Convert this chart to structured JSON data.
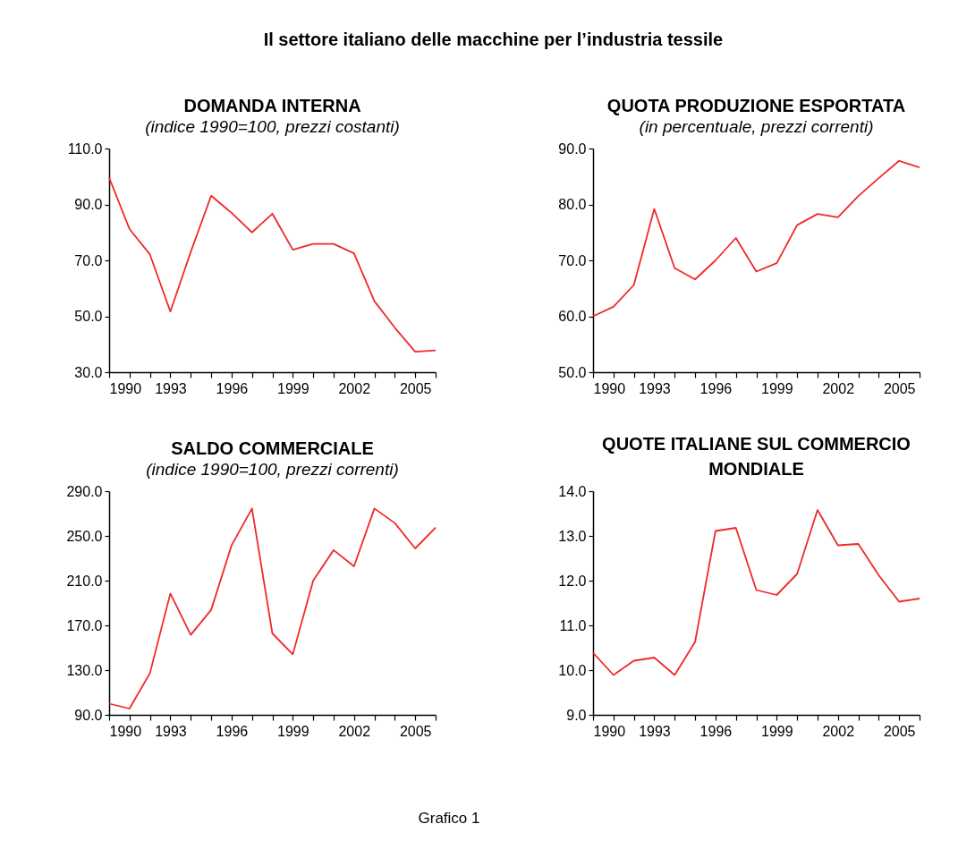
{
  "chart_data": [
    {
      "type": "line",
      "title": "DOMANDA INTERNA",
      "subtitle": "(indice 1990=100, prezzi costanti)",
      "annotations": [
        "Il settore italiano delle macchine per l’industria tessile",
        "Grafico 1"
      ],
      "color": "#f0282a",
      "x": [
        1990,
        1991,
        1992,
        1993,
        1994,
        1995,
        1996,
        1997,
        1998,
        1999,
        2000,
        2001,
        2002,
        2003,
        2004,
        2005,
        2006
      ],
      "values": [
        99.6,
        81.2,
        72.1,
        51.7,
        73,
        93.1,
        87.0,
        80.0,
        86.7,
        73.8,
        75.9,
        75.9,
        72.5,
        55.4,
        45.9,
        37.3,
        37.8
      ],
      "xlim": [
        1990,
        2006
      ],
      "xticks": [
        1990,
        {
          "value": 1991,
          "label": null
        },
        {
          "value": 1992,
          "label": null
        },
        1993,
        {
          "value": 1994,
          "label": null
        },
        {
          "value": 1995,
          "label": null
        },
        1996,
        {
          "value": 1997,
          "label": null
        },
        {
          "value": 1998,
          "label": null
        },
        1999,
        {
          "value": 2000,
          "label": null
        },
        {
          "value": 2001,
          "label": null
        },
        2002,
        {
          "value": 2003,
          "label": null
        },
        {
          "value": 2004,
          "label": null
        },
        2005,
        {
          "value": 2006,
          "label": null
        }
      ],
      "ylim": [
        30,
        110
      ],
      "yticks": [
        {
          "value": 30,
          "label": "30.0"
        },
        {
          "value": 50,
          "label": "50.0"
        },
        {
          "value": 70,
          "label": "70.0"
        },
        {
          "value": 90,
          "label": "90.0"
        },
        {
          "value": 110,
          "label": "110.0"
        }
      ],
      "grid": false,
      "marker": "none",
      "line_style": "solid"
    },
    {
      "type": "line",
      "title": "QUOTA PRODUZIONE ESPORTATA",
      "subtitle": "(in percentuale, prezzi correnti)",
      "color": "#f0282a",
      "x": [
        1990,
        1991,
        1992,
        1993,
        1994,
        1995,
        1996,
        1997,
        1998,
        1999,
        2000,
        2001,
        2002,
        2003,
        2004,
        2005,
        2006
      ],
      "values": [
        60.0,
        61.7,
        65.6,
        79.2,
        68.6,
        66.6,
        70.0,
        74.0,
        68.0,
        69.5,
        76.3,
        78.3,
        77.7,
        81.5,
        84.7,
        87.8,
        86.6
      ],
      "xlim": [
        1990,
        2006
      ],
      "xticks": [
        1990,
        {
          "value": 1991,
          "label": null
        },
        {
          "value": 1992,
          "label": null
        },
        1993,
        {
          "value": 1994,
          "label": null
        },
        {
          "value": 1995,
          "label": null
        },
        1996,
        {
          "value": 1997,
          "label": null
        },
        {
          "value": 1998,
          "label": null
        },
        1999,
        {
          "value": 2000,
          "label": null
        },
        {
          "value": 2001,
          "label": null
        },
        2002,
        {
          "value": 2003,
          "label": null
        },
        {
          "value": 2004,
          "label": null
        },
        2005,
        {
          "value": 2006,
          "label": null
        }
      ],
      "ylim": [
        50,
        90
      ],
      "yticks": [
        {
          "value": 50,
          "label": "50.0"
        },
        {
          "value": 60,
          "label": "60.0"
        },
        {
          "value": 70,
          "label": "70.0"
        },
        {
          "value": 80,
          "label": "80.0"
        },
        {
          "value": 90,
          "label": "90.0"
        }
      ],
      "grid": false,
      "marker": "none",
      "line_style": "solid"
    },
    {
      "type": "line",
      "title": "SALDO COMMERCIALE",
      "subtitle": "(indice 1990=100, prezzi correnti)",
      "color": "#f0282a",
      "x": [
        1990,
        1991,
        1992,
        1993,
        1994,
        1995,
        1996,
        1997,
        1998,
        1999,
        2000,
        2001,
        2002,
        2003,
        2004,
        2005,
        2006
      ],
      "values": [
        100,
        95.6,
        127.3,
        198.5,
        161.5,
        183.9,
        241.5,
        274.5,
        162.8,
        144.1,
        210,
        237.3,
        222.8,
        274.5,
        261.5,
        238.8,
        257.5
      ],
      "xlim": [
        1990,
        2006
      ],
      "xticks": [
        1990,
        {
          "value": 1991,
          "label": null
        },
        {
          "value": 1992,
          "label": null
        },
        1993,
        {
          "value": 1994,
          "label": null
        },
        {
          "value": 1995,
          "label": null
        },
        1996,
        {
          "value": 1997,
          "label": null
        },
        {
          "value": 1998,
          "label": null
        },
        1999,
        {
          "value": 2000,
          "label": null
        },
        {
          "value": 2001,
          "label": null
        },
        2002,
        {
          "value": 2003,
          "label": null
        },
        {
          "value": 2004,
          "label": null
        },
        2005,
        {
          "value": 2006,
          "label": null
        }
      ],
      "ylim": [
        90,
        290
      ],
      "yticks": [
        {
          "value": 90,
          "label": "90.0"
        },
        {
          "value": 130,
          "label": "130.0"
        },
        {
          "value": 170,
          "label": "170.0"
        },
        {
          "value": 210,
          "label": "210.0"
        },
        {
          "value": 250,
          "label": "250.0"
        },
        {
          "value": 290,
          "label": "290.0"
        }
      ],
      "grid": false,
      "marker": "none",
      "line_style": "solid"
    },
    {
      "type": "line",
      "title": "QUOTE ITALIANE SUL COMMERCIO MONDIALE",
      "color": "#f0282a",
      "x": [
        1990,
        1991,
        1992,
        1993,
        1994,
        1995,
        1996,
        1997,
        1998,
        1999,
        2000,
        2001,
        2002,
        2003,
        2004,
        2005,
        2006
      ],
      "values": [
        10.39,
        9.89,
        10.21,
        10.28,
        9.89,
        10.63,
        13.11,
        13.18,
        11.79,
        11.68,
        12.15,
        13.58,
        12.79,
        12.82,
        12.12,
        11.53,
        11.6
      ],
      "xlim": [
        1990,
        2006
      ],
      "xticks": [
        1990,
        {
          "value": 1991,
          "label": null
        },
        {
          "value": 1992,
          "label": null
        },
        1993,
        {
          "value": 1994,
          "label": null
        },
        {
          "value": 1995,
          "label": null
        },
        1996,
        {
          "value": 1997,
          "label": null
        },
        {
          "value": 1998,
          "label": null
        },
        1999,
        {
          "value": 2000,
          "label": null
        },
        {
          "value": 2001,
          "label": null
        },
        2002,
        {
          "value": 2003,
          "label": null
        },
        {
          "value": 2004,
          "label": null
        },
        2005,
        {
          "value": 2006,
          "label": null
        }
      ],
      "ylim": [
        9,
        14
      ],
      "yticks": [
        {
          "value": 9,
          "label": "9.0"
        },
        {
          "value": 10,
          "label": "10.0"
        },
        {
          "value": 11,
          "label": "11.0"
        },
        {
          "value": 12,
          "label": "12.0"
        },
        {
          "value": 13,
          "label": "13.0"
        },
        {
          "value": 14,
          "label": "14.0"
        }
      ],
      "grid": false,
      "marker": "none",
      "line_style": "solid"
    }
  ]
}
